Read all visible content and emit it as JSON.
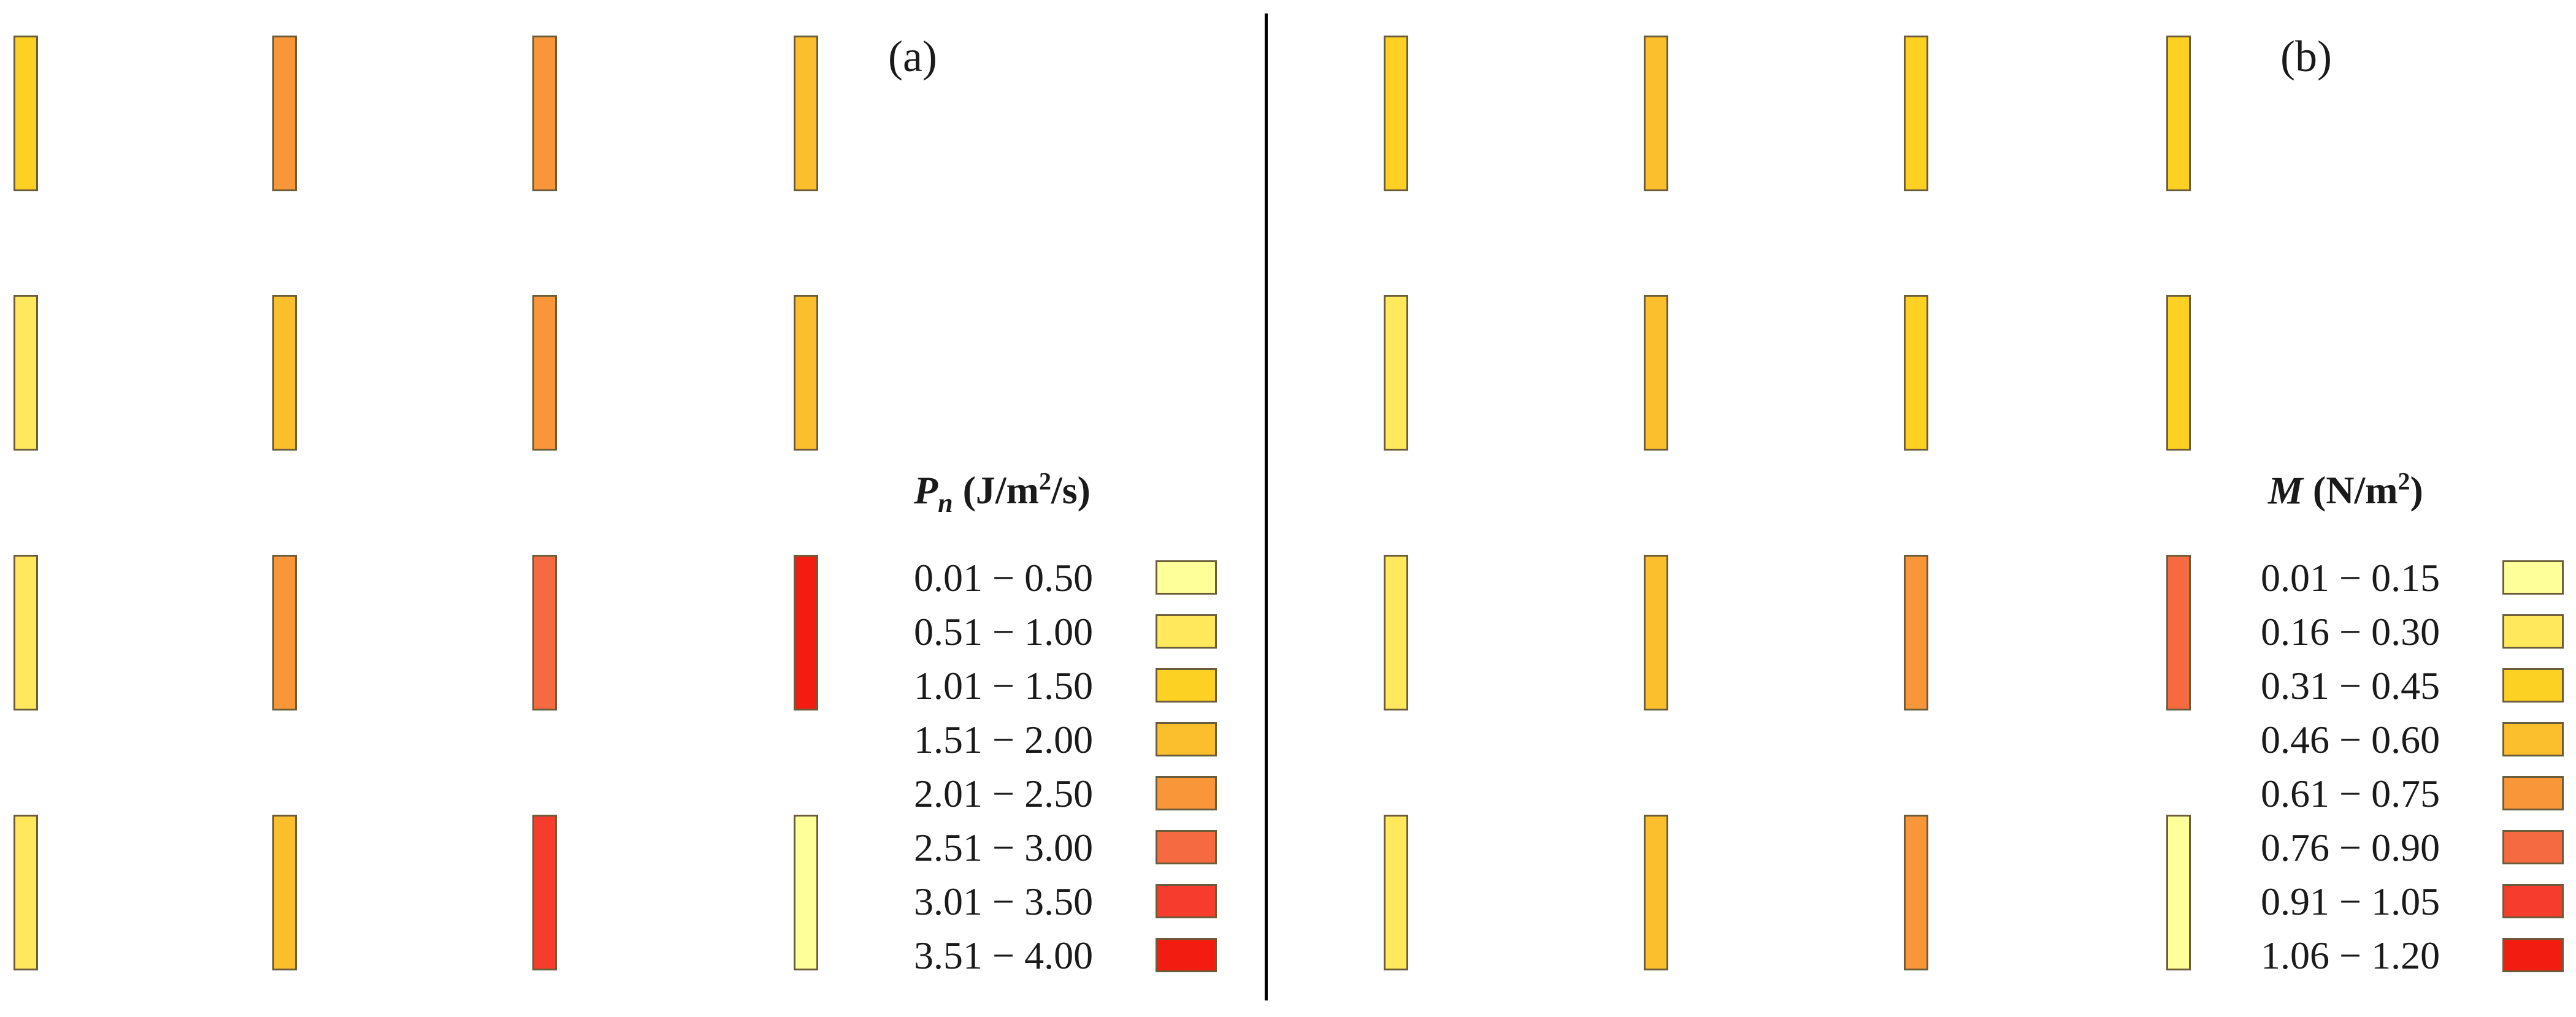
{
  "palette": [
    "#ffff99",
    "#ffe85c",
    "#fdd024",
    "#fbbe2c",
    "#f9963a",
    "#f66a42",
    "#f63c2c",
    "#f21c10"
  ],
  "panels": [
    {
      "label": "(a)",
      "legend": {
        "symbol": "P",
        "subscript": "n",
        "unit_before": "(J/m",
        "unit_sup": "2",
        "unit_after": "/s)",
        "ranges": [
          "0.01 − 0.50",
          "0.51 − 1.00",
          "1.01 − 1.50",
          "1.51 − 2.00",
          "2.01 − 2.50",
          "2.51 − 3.00",
          "3.01 − 3.50",
          "3.51 − 4.00"
        ]
      },
      "grid": [
        [
          2,
          4,
          4,
          3
        ],
        [
          1,
          3,
          4,
          3
        ],
        [
          1,
          4,
          5,
          7
        ],
        [
          1,
          3,
          6,
          0
        ]
      ]
    },
    {
      "label": "(b)",
      "legend": {
        "symbol": "M",
        "subscript": "",
        "unit_before": "(N/m",
        "unit_sup": "2",
        "unit_after": ")",
        "ranges": [
          "0.01 − 0.15",
          "0.16 − 0.30",
          "0.31 − 0.45",
          "0.46 − 0.60",
          "0.61 − 0.75",
          "0.76 − 0.90",
          "0.91 − 1.05",
          "1.06 − 1.20"
        ]
      },
      "grid": [
        [
          2,
          3,
          2,
          2
        ],
        [
          1,
          3,
          2,
          2
        ],
        [
          1,
          3,
          4,
          5
        ],
        [
          1,
          3,
          4,
          0
        ]
      ]
    }
  ]
}
